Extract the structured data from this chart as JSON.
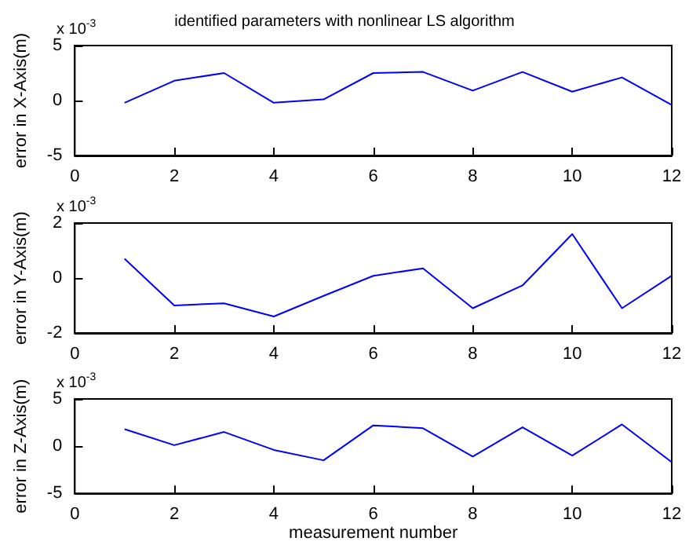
{
  "chart_data": [
    {
      "type": "line",
      "title": "identified parameters with nonlinear LS algorithm",
      "ylabel": "error in X-Axis(m)",
      "annotations": [
        "x 10$^{-3}$"
      ],
      "x": [
        1,
        2,
        3,
        4,
        5,
        6,
        7,
        8,
        9,
        10,
        11,
        12
      ],
      "series": [
        {
          "color": "#0000ff",
          "values": [
            -0.2,
            1.8,
            2.5,
            -0.2,
            0.1,
            2.5,
            2.6,
            0.9,
            2.6,
            0.8,
            2.1,
            -0.4
          ]
        }
      ],
      "xlim": [
        0,
        12
      ],
      "xticks": [
        0,
        2,
        4,
        6,
        8,
        10,
        12
      ],
      "ylim": [
        -5,
        5
      ],
      "yticks": [
        -5,
        0,
        5
      ],
      "grid": false,
      "marker": "none",
      "line_style": "solid"
    },
    {
      "type": "line",
      "ylabel": "error in Y-Axis(m)",
      "annotations": [
        "x 10$^{-3}$"
      ],
      "x": [
        1,
        2,
        3,
        4,
        5,
        6,
        7,
        8,
        9,
        10,
        11,
        12
      ],
      "series": [
        {
          "color": "#0000ff",
          "values": [
            0.7,
            -1.0,
            -0.92,
            -1.4,
            -0.65,
            0.08,
            0.35,
            -1.1,
            -0.27,
            1.6,
            -1.1,
            0.08
          ]
        }
      ],
      "xlim": [
        0,
        12
      ],
      "xticks": [
        0,
        2,
        4,
        6,
        8,
        10,
        12
      ],
      "ylim": [
        -2,
        2
      ],
      "yticks": [
        -2,
        0,
        2
      ],
      "grid": false,
      "marker": "none",
      "line_style": "solid"
    },
    {
      "type": "line",
      "xlabel": "measurement number",
      "ylabel": "error in Z-Axis(m)",
      "annotations": [
        "x 10$^{-3}$"
      ],
      "x": [
        1,
        2,
        3,
        4,
        5,
        6,
        7,
        8,
        9,
        10,
        11,
        12
      ],
      "series": [
        {
          "color": "#0000ff",
          "values": [
            1.8,
            0.1,
            1.5,
            -0.4,
            -1.5,
            2.2,
            1.9,
            -1.1,
            2.0,
            -1.0,
            2.3,
            -1.7
          ]
        }
      ],
      "xlim": [
        0,
        12
      ],
      "xticks": [
        0,
        2,
        4,
        6,
        8,
        10,
        12
      ],
      "ylim": [
        -5,
        5
      ],
      "yticks": [
        -5,
        0,
        5
      ],
      "grid": false,
      "marker": "none",
      "line_style": "solid"
    }
  ]
}
